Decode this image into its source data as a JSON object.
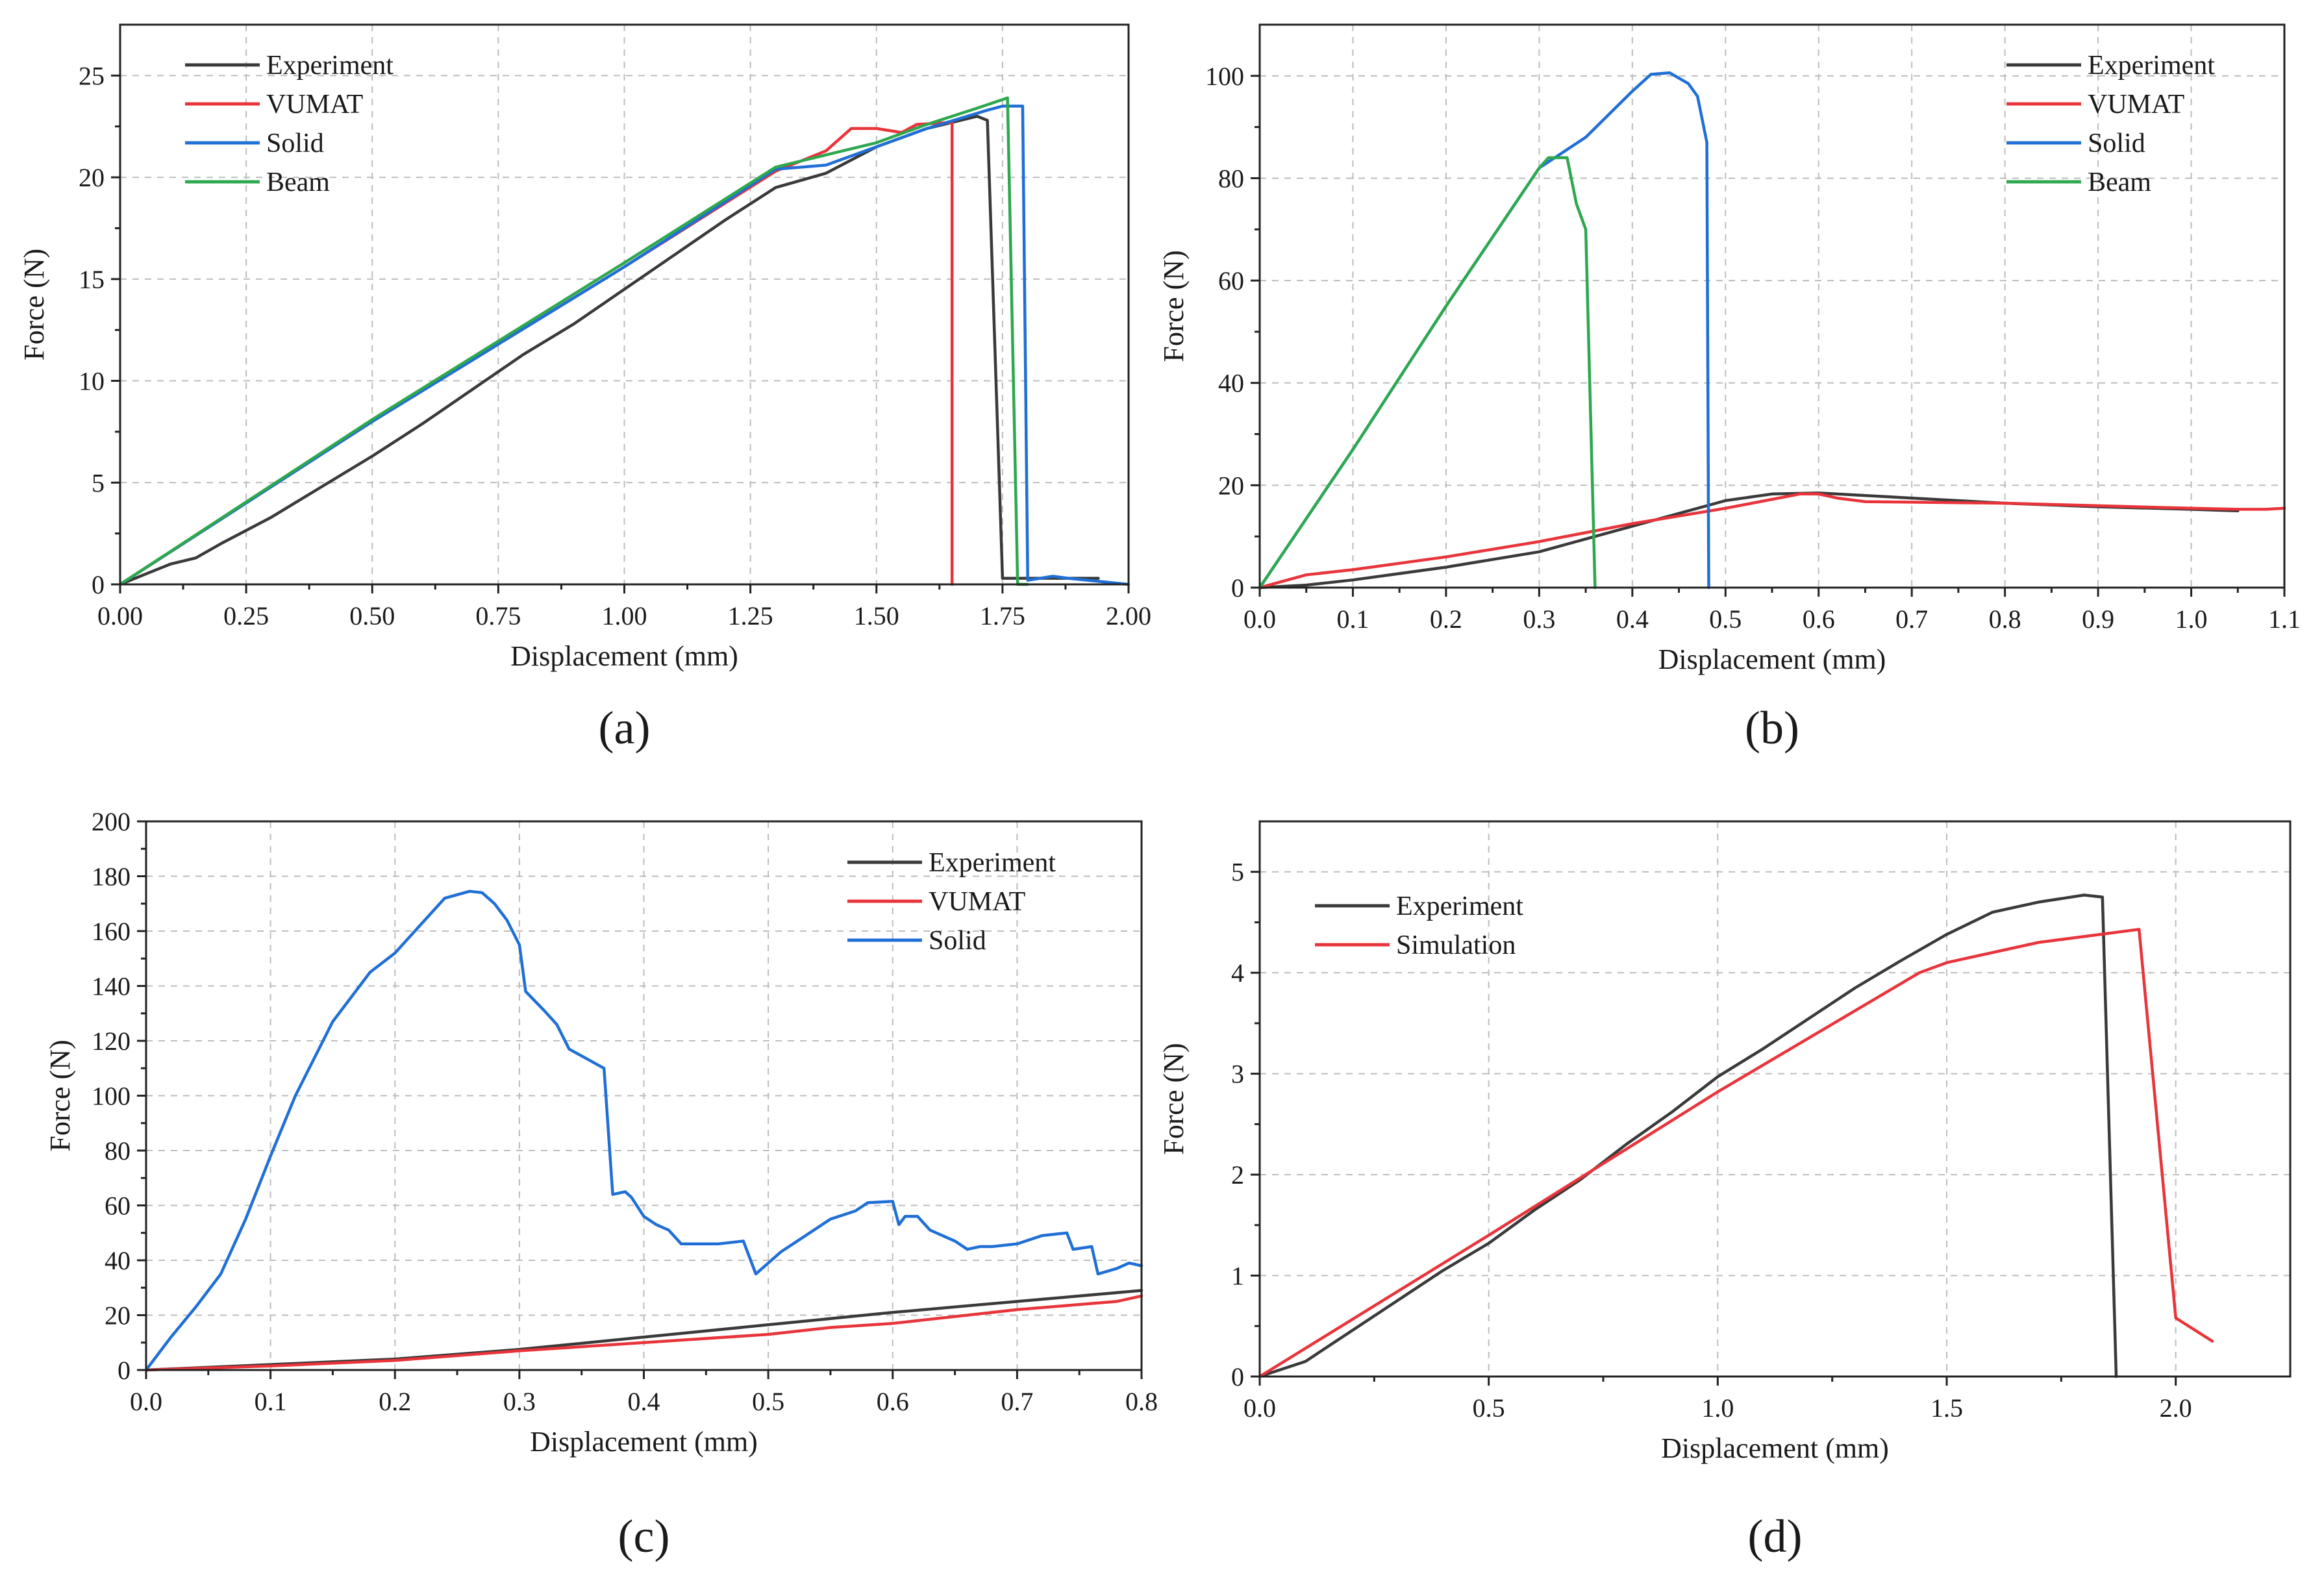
{
  "charts": [
    {
      "id": "a",
      "caption": "(a)",
      "type": "line",
      "xlabel": "Displacement (mm)",
      "ylabel": "Force (N)",
      "xlim": [
        0,
        2.0
      ],
      "ylim": [
        0,
        27.5
      ],
      "xticks": [
        0,
        0.25,
        0.5,
        0.75,
        1.0,
        1.25,
        1.5,
        1.75,
        2.0
      ],
      "xtick_labels": [
        "0.00",
        "0.25",
        "0.50",
        "0.75",
        "1.00",
        "1.25",
        "1.50",
        "1.75",
        "2.00"
      ],
      "yticks": [
        0,
        5,
        10,
        15,
        20,
        25
      ],
      "ytick_labels": [
        "0",
        "5",
        "10",
        "15",
        "20",
        "25"
      ],
      "grid": true,
      "legend_position": "top-left",
      "series": [
        {
          "name": "Experiment",
          "color": "#3a3a3a",
          "points": [
            [
              0,
              0
            ],
            [
              0.05,
              0.5
            ],
            [
              0.1,
              1.0
            ],
            [
              0.15,
              1.3
            ],
            [
              0.2,
              2.0
            ],
            [
              0.3,
              3.3
            ],
            [
              0.4,
              4.8
            ],
            [
              0.5,
              6.3
            ],
            [
              0.6,
              7.9
            ],
            [
              0.7,
              9.6
            ],
            [
              0.8,
              11.3
            ],
            [
              0.9,
              12.8
            ],
            [
              1.0,
              14.5
            ],
            [
              1.1,
              16.2
            ],
            [
              1.2,
              17.9
            ],
            [
              1.3,
              19.5
            ],
            [
              1.4,
              20.2
            ],
            [
              1.5,
              21.5
            ],
            [
              1.6,
              22.4
            ],
            [
              1.7,
              23.0
            ],
            [
              1.72,
              22.8
            ],
            [
              1.75,
              0.3
            ],
            [
              1.85,
              0.3
            ],
            [
              1.94,
              0.3
            ]
          ]
        },
        {
          "name": "VUMAT",
          "color": "#e8343a",
          "points": [
            [
              0,
              0
            ],
            [
              0.5,
              8.0
            ],
            [
              1.0,
              15.6
            ],
            [
              1.3,
              20.3
            ],
            [
              1.4,
              21.3
            ],
            [
              1.45,
              22.4
            ],
            [
              1.5,
              22.4
            ],
            [
              1.55,
              22.2
            ],
            [
              1.58,
              22.6
            ],
            [
              1.65,
              22.7
            ],
            [
              1.65,
              0
            ]
          ]
        },
        {
          "name": "Solid",
          "color": "#1f6fd6",
          "points": [
            [
              0,
              0
            ],
            [
              0.5,
              8.0
            ],
            [
              1.0,
              15.6
            ],
            [
              1.3,
              20.4
            ],
            [
              1.4,
              20.6
            ],
            [
              1.5,
              21.5
            ],
            [
              1.6,
              22.4
            ],
            [
              1.72,
              23.3
            ],
            [
              1.75,
              23.5
            ],
            [
              1.79,
              23.5
            ],
            [
              1.8,
              0.2
            ],
            [
              1.85,
              0.4
            ],
            [
              1.88,
              0.3
            ],
            [
              2.0,
              0
            ]
          ]
        },
        {
          "name": "Beam",
          "color": "#2ea84e",
          "points": [
            [
              0,
              0
            ],
            [
              0.5,
              8.1
            ],
            [
              1.0,
              15.8
            ],
            [
              1.3,
              20.5
            ],
            [
              1.35,
              20.8
            ],
            [
              1.5,
              21.7
            ],
            [
              1.6,
              22.6
            ],
            [
              1.7,
              23.4
            ],
            [
              1.76,
              23.9
            ],
            [
              1.78,
              0
            ],
            [
              1.8,
              0
            ]
          ]
        }
      ]
    },
    {
      "id": "b",
      "caption": "(b)",
      "type": "line",
      "xlabel": "Displacement (mm)",
      "ylabel": "Force (N)",
      "xlim": [
        0,
        1.1
      ],
      "ylim": [
        0,
        110
      ],
      "xticks": [
        0,
        0.1,
        0.2,
        0.3,
        0.4,
        0.5,
        0.6,
        0.7,
        0.8,
        0.9,
        1.0,
        1.1
      ],
      "xtick_labels": [
        "0.0",
        "0.1",
        "0.2",
        "0.3",
        "0.4",
        "0.5",
        "0.6",
        "0.7",
        "0.8",
        "0.9",
        "1.0",
        "1.1"
      ],
      "yticks": [
        0,
        20,
        40,
        60,
        80,
        100
      ],
      "ytick_labels": [
        "0",
        "20",
        "40",
        "60",
        "80",
        "100"
      ],
      "grid": true,
      "legend_position": "top-right",
      "series": [
        {
          "name": "Experiment",
          "color": "#3a3a3a",
          "points": [
            [
              0,
              0
            ],
            [
              0.05,
              0.5
            ],
            [
              0.1,
              1.5
            ],
            [
              0.2,
              4
            ],
            [
              0.3,
              7
            ],
            [
              0.4,
              12
            ],
            [
              0.5,
              17
            ],
            [
              0.55,
              18.3
            ],
            [
              0.6,
              18.5
            ],
            [
              0.7,
              17.5
            ],
            [
              0.8,
              16.5
            ],
            [
              0.9,
              15.8
            ],
            [
              1.0,
              15.3
            ],
            [
              1.05,
              15
            ]
          ]
        },
        {
          "name": "VUMAT",
          "color": "#e8343a",
          "points": [
            [
              0,
              0
            ],
            [
              0.03,
              1.5
            ],
            [
              0.05,
              2.5
            ],
            [
              0.1,
              3.5
            ],
            [
              0.2,
              6
            ],
            [
              0.3,
              9
            ],
            [
              0.4,
              12.5
            ],
            [
              0.5,
              15.5
            ],
            [
              0.58,
              18.3
            ],
            [
              0.6,
              18.3
            ],
            [
              0.62,
              17.5
            ],
            [
              0.65,
              16.8
            ],
            [
              0.8,
              16.5
            ],
            [
              0.9,
              16
            ],
            [
              1.0,
              15.5
            ],
            [
              1.05,
              15.3
            ],
            [
              1.08,
              15.3
            ],
            [
              1.1,
              15.5
            ]
          ]
        },
        {
          "name": "Solid",
          "color": "#1f6fd6",
          "points": [
            [
              0,
              0
            ],
            [
              0.1,
              27
            ],
            [
              0.2,
              55
            ],
            [
              0.3,
              82
            ],
            [
              0.35,
              88
            ],
            [
              0.4,
              97
            ],
            [
              0.42,
              100.3
            ],
            [
              0.44,
              100.6
            ],
            [
              0.46,
              98.5
            ],
            [
              0.47,
              96
            ],
            [
              0.48,
              87
            ],
            [
              0.482,
              0
            ]
          ]
        },
        {
          "name": "Beam",
          "color": "#2ea84e",
          "points": [
            [
              0,
              0
            ],
            [
              0.1,
              27
            ],
            [
              0.2,
              55
            ],
            [
              0.3,
              82
            ],
            [
              0.31,
              84
            ],
            [
              0.33,
              84
            ],
            [
              0.34,
              75
            ],
            [
              0.35,
              70
            ],
            [
              0.36,
              0
            ]
          ]
        }
      ]
    },
    {
      "id": "c",
      "caption": "(c)",
      "type": "line",
      "xlabel": "Displacement (mm)",
      "ylabel": "Force (N)",
      "xlim": [
        0,
        0.8
      ],
      "ylim": [
        0,
        200
      ],
      "xticks": [
        0,
        0.1,
        0.2,
        0.3,
        0.4,
        0.5,
        0.6,
        0.7,
        0.8
      ],
      "xtick_labels": [
        "0.0",
        "0.1",
        "0.2",
        "0.3",
        "0.4",
        "0.5",
        "0.6",
        "0.7",
        "0.8"
      ],
      "yticks": [
        0,
        20,
        40,
        60,
        80,
        100,
        120,
        140,
        160,
        180,
        200
      ],
      "ytick_labels": [
        "0",
        "20",
        "40",
        "60",
        "80",
        "100",
        "120",
        "140",
        "160",
        "180",
        "200"
      ],
      "grid": true,
      "legend_position": "top-right",
      "series": [
        {
          "name": "Experiment",
          "color": "#3a3a3a",
          "points": [
            [
              0,
              0
            ],
            [
              0.1,
              2
            ],
            [
              0.2,
              4
            ],
            [
              0.3,
              7.5
            ],
            [
              0.4,
              12
            ],
            [
              0.5,
              16.5
            ],
            [
              0.6,
              21
            ],
            [
              0.7,
              25
            ],
            [
              0.8,
              29
            ]
          ]
        },
        {
          "name": "VUMAT",
          "color": "#e8343a",
          "points": [
            [
              0,
              0
            ],
            [
              0.1,
              1.5
            ],
            [
              0.2,
              3.5
            ],
            [
              0.3,
              7
            ],
            [
              0.4,
              10
            ],
            [
              0.5,
              13
            ],
            [
              0.55,
              15.5
            ],
            [
              0.6,
              17
            ],
            [
              0.7,
              22
            ],
            [
              0.78,
              25
            ],
            [
              0.8,
              27
            ]
          ]
        },
        {
          "name": "Solid",
          "color": "#1f6fd6",
          "points": [
            [
              0,
              0
            ],
            [
              0.02,
              12
            ],
            [
              0.04,
              23
            ],
            [
              0.06,
              35
            ],
            [
              0.08,
              55
            ],
            [
              0.1,
              78
            ],
            [
              0.12,
              100
            ],
            [
              0.15,
              127
            ],
            [
              0.18,
              145
            ],
            [
              0.2,
              152
            ],
            [
              0.22,
              162
            ],
            [
              0.24,
              172
            ],
            [
              0.26,
              174.5
            ],
            [
              0.27,
              174
            ],
            [
              0.28,
              170
            ],
            [
              0.29,
              164
            ],
            [
              0.3,
              155
            ],
            [
              0.305,
              138
            ],
            [
              0.32,
              131
            ],
            [
              0.33,
              126
            ],
            [
              0.34,
              117
            ],
            [
              0.36,
              112
            ],
            [
              0.368,
              110
            ],
            [
              0.375,
              64
            ],
            [
              0.385,
              65
            ],
            [
              0.39,
              63
            ],
            [
              0.4,
              56
            ],
            [
              0.41,
              53
            ],
            [
              0.42,
              51
            ],
            [
              0.43,
              46
            ],
            [
              0.46,
              46
            ],
            [
              0.48,
              47
            ],
            [
              0.49,
              35
            ],
            [
              0.51,
              43
            ],
            [
              0.53,
              49
            ],
            [
              0.55,
              55
            ],
            [
              0.57,
              58
            ],
            [
              0.58,
              61
            ],
            [
              0.6,
              61.5
            ],
            [
              0.605,
              53
            ],
            [
              0.61,
              56
            ],
            [
              0.62,
              56
            ],
            [
              0.63,
              51
            ],
            [
              0.65,
              47
            ],
            [
              0.66,
              44
            ],
            [
              0.67,
              45
            ],
            [
              0.68,
              45
            ],
            [
              0.7,
              46
            ],
            [
              0.72,
              49
            ],
            [
              0.74,
              50
            ],
            [
              0.745,
              44
            ],
            [
              0.76,
              45
            ],
            [
              0.765,
              35
            ],
            [
              0.78,
              37
            ],
            [
              0.79,
              39
            ],
            [
              0.8,
              38
            ]
          ]
        }
      ]
    },
    {
      "id": "d",
      "caption": "(d)",
      "type": "line",
      "xlabel": "Displacement (mm)",
      "ylabel": "Force (N)",
      "xlim": [
        0,
        2.25
      ],
      "ylim": [
        0,
        5.5
      ],
      "xticks": [
        0,
        0.5,
        1.0,
        1.5,
        2.0
      ],
      "xtick_labels": [
        "0.0",
        "0.5",
        "1.0",
        "1.5",
        "2.0"
      ],
      "yticks": [
        0,
        1,
        2,
        3,
        4,
        5
      ],
      "ytick_labels": [
        "0",
        "1",
        "2",
        "3",
        "4",
        "5"
      ],
      "grid": true,
      "legend_position": "top-left",
      "series": [
        {
          "name": "Experiment",
          "color": "#3a3a3a",
          "points": [
            [
              0,
              0
            ],
            [
              0.1,
              0.15
            ],
            [
              0.2,
              0.45
            ],
            [
              0.3,
              0.75
            ],
            [
              0.4,
              1.05
            ],
            [
              0.5,
              1.32
            ],
            [
              0.6,
              1.65
            ],
            [
              0.7,
              1.95
            ],
            [
              0.8,
              2.3
            ],
            [
              0.9,
              2.62
            ],
            [
              1.0,
              2.97
            ],
            [
              1.1,
              3.25
            ],
            [
              1.2,
              3.55
            ],
            [
              1.3,
              3.85
            ],
            [
              1.4,
              4.12
            ],
            [
              1.5,
              4.38
            ],
            [
              1.6,
              4.6
            ],
            [
              1.7,
              4.7
            ],
            [
              1.8,
              4.77
            ],
            [
              1.84,
              4.75
            ],
            [
              1.87,
              0
            ]
          ]
        },
        {
          "name": "Simulation",
          "color": "#e8343a",
          "points": [
            [
              0,
              0
            ],
            [
              0.5,
              1.4
            ],
            [
              1.0,
              2.82
            ],
            [
              1.44,
              4.0
            ],
            [
              1.5,
              4.1
            ],
            [
              1.7,
              4.3
            ],
            [
              1.92,
              4.43
            ],
            [
              2.0,
              0.58
            ],
            [
              2.08,
              0.35
            ]
          ]
        }
      ]
    }
  ]
}
